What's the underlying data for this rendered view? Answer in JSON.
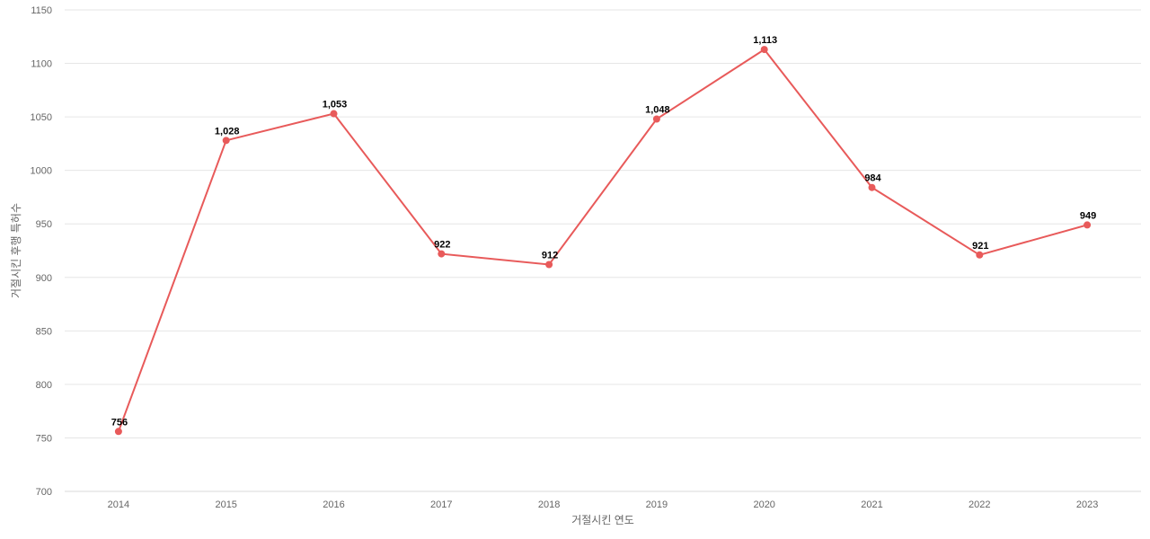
{
  "chart_data": {
    "type": "line",
    "title": "",
    "xlabel": "거절시킨 연도",
    "ylabel": "거절시킨 후행 특허수",
    "categories": [
      "2014",
      "2015",
      "2016",
      "2017",
      "2018",
      "2019",
      "2020",
      "2021",
      "2022",
      "2023"
    ],
    "series": [
      {
        "values": [
          756,
          1028,
          1053,
          922,
          912,
          1048,
          1113,
          984,
          921,
          949
        ],
        "data_labels": [
          "756",
          "1,028",
          "1,053",
          "922",
          "912",
          "1,048",
          "1,113",
          "984",
          "921",
          "949"
        ],
        "color": "#e85a5a"
      }
    ],
    "ylim": [
      700,
      1150
    ],
    "yticks": [
      "700",
      "750",
      "800",
      "850",
      "900",
      "950",
      "1000",
      "1050",
      "1100",
      "1150"
    ],
    "grid": true,
    "legend": "none"
  }
}
